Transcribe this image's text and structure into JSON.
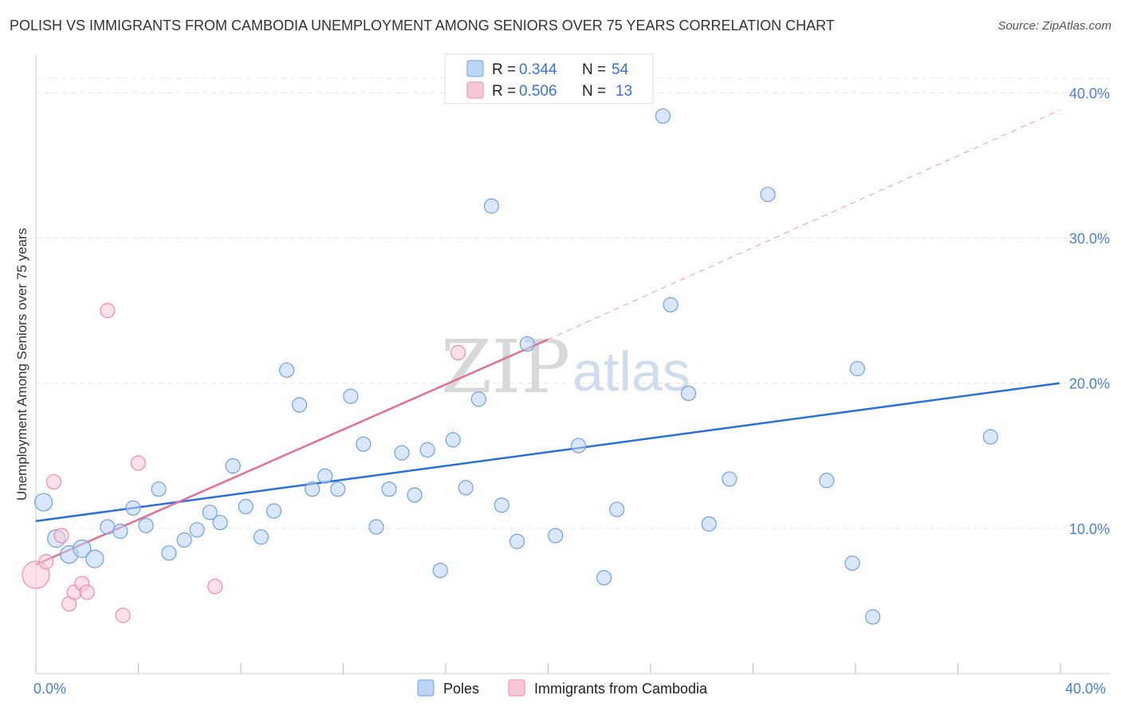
{
  "header": {
    "title": "POLISH VS IMMIGRANTS FROM CAMBODIA UNEMPLOYMENT AMONG SENIORS OVER 75 YEARS CORRELATION CHART",
    "source": "Source: ZipAtlas.com"
  },
  "watermark": {
    "zip": "ZIP",
    "atlas": "atlas"
  },
  "legend": {
    "r_label": "R =",
    "n_label": "N =",
    "rows": [
      {
        "r": "0.344",
        "n": "54"
      },
      {
        "r": "0.506",
        "n": "13"
      }
    ]
  },
  "chart_data": {
    "type": "scatter",
    "ylabel": "Unemployment Among Seniors over 75 years",
    "xlim": [
      0,
      40
    ],
    "ylim": [
      0,
      42
    ],
    "x_tick_labels": [
      "0.0%",
      "40.0%"
    ],
    "y_ticks": [
      10,
      20,
      30,
      40
    ],
    "y_tick_labels": [
      "10.0%",
      "20.0%",
      "30.0%",
      "40.0%"
    ],
    "colors": {
      "poles": "#6fa0e0",
      "cambodia": "#f08aa8",
      "poles_line": "#2a6fd6",
      "cambodia_line": "#e07096"
    },
    "series": [
      {
        "name": "Poles",
        "points": [
          [
            0.3,
            11.8
          ],
          [
            0.8,
            9.3
          ],
          [
            1.3,
            8.2
          ],
          [
            1.8,
            8.6
          ],
          [
            2.3,
            7.9
          ],
          [
            2.8,
            10.1
          ],
          [
            3.3,
            9.8
          ],
          [
            3.8,
            11.4
          ],
          [
            4.3,
            10.2
          ],
          [
            4.8,
            12.7
          ],
          [
            5.2,
            8.3
          ],
          [
            5.8,
            9.2
          ],
          [
            6.3,
            9.9
          ],
          [
            6.8,
            11.1
          ],
          [
            7.2,
            10.4
          ],
          [
            7.7,
            14.3
          ],
          [
            8.2,
            11.5
          ],
          [
            8.8,
            9.4
          ],
          [
            9.3,
            11.2
          ],
          [
            9.8,
            20.9
          ],
          [
            10.3,
            18.5
          ],
          [
            10.8,
            12.7
          ],
          [
            11.3,
            13.6
          ],
          [
            11.8,
            12.7
          ],
          [
            12.3,
            19.1
          ],
          [
            12.8,
            15.8
          ],
          [
            13.3,
            10.1
          ],
          [
            13.8,
            12.7
          ],
          [
            14.3,
            15.2
          ],
          [
            14.8,
            12.3
          ],
          [
            15.3,
            15.4
          ],
          [
            15.8,
            7.1
          ],
          [
            16.3,
            16.1
          ],
          [
            16.8,
            12.8
          ],
          [
            17.3,
            18.9
          ],
          [
            17.8,
            32.2
          ],
          [
            18.2,
            11.6
          ],
          [
            18.8,
            9.1
          ],
          [
            19.2,
            22.7
          ],
          [
            20.3,
            9.5
          ],
          [
            21.2,
            15.7
          ],
          [
            22.2,
            6.6
          ],
          [
            22.7,
            11.3
          ],
          [
            24.5,
            38.4
          ],
          [
            24.8,
            25.4
          ],
          [
            25.5,
            19.3
          ],
          [
            26.3,
            10.3
          ],
          [
            27.1,
            13.4
          ],
          [
            28.6,
            33.0
          ],
          [
            30.9,
            13.3
          ],
          [
            31.9,
            7.6
          ],
          [
            32.1,
            21.0
          ],
          [
            32.7,
            3.9
          ],
          [
            37.3,
            16.3
          ]
        ]
      },
      {
        "name": "Immigrants from Cambodia",
        "points": [
          [
            0.0,
            6.8
          ],
          [
            0.4,
            7.7
          ],
          [
            0.7,
            13.2
          ],
          [
            1.0,
            9.5
          ],
          [
            1.3,
            4.8
          ],
          [
            1.5,
            5.6
          ],
          [
            1.8,
            6.2
          ],
          [
            2.0,
            5.6
          ],
          [
            2.8,
            25.0
          ],
          [
            3.4,
            4.0
          ],
          [
            4.0,
            14.5
          ],
          [
            7.0,
            6.0
          ],
          [
            16.5,
            22.1
          ]
        ]
      }
    ],
    "trend_lines": [
      {
        "series": "Poles",
        "x0": 0,
        "y0": 10.5,
        "x1": 40,
        "y1": 20.0
      },
      {
        "series": "Immigrants from Cambodia",
        "x0": 0,
        "y0": 7.5,
        "x1": 20,
        "y1": 23.0,
        "dashed_to_x": 40,
        "dashed_to_y": 38.8
      }
    ]
  }
}
